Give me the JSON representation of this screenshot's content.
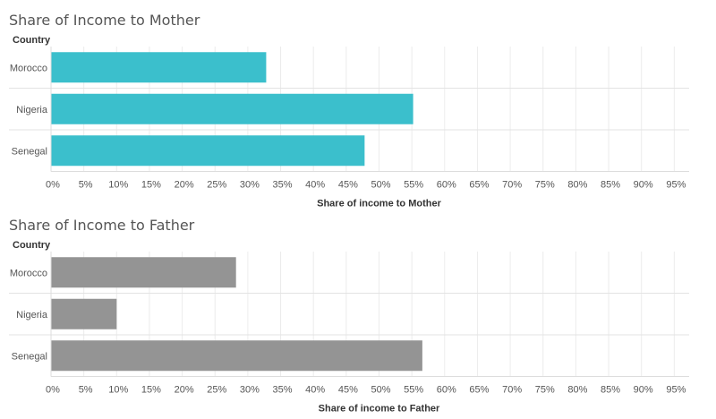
{
  "chart_data": [
    {
      "type": "bar",
      "orientation": "horizontal",
      "title": "Share of Income to Mother",
      "row_header": "Country",
      "categories": [
        "Morocco",
        "Nigeria",
        "Senegal"
      ],
      "values": [
        32.8,
        55.2,
        47.8
      ],
      "xlabel": "Share of income to Mother",
      "xlim": [
        0,
        100
      ],
      "ticks": [
        "0%",
        "5%",
        "10%",
        "15%",
        "20%",
        "25%",
        "30%",
        "35%",
        "40%",
        "45%",
        "50%",
        "55%",
        "60%",
        "65%",
        "70%",
        "75%",
        "80%",
        "85%",
        "90%",
        "95%"
      ],
      "bar_color": "#3bbfcc",
      "grid": true
    },
    {
      "type": "bar",
      "orientation": "horizontal",
      "title": "Share of Income to Father",
      "row_header": "Country",
      "categories": [
        "Morocco",
        "Nigeria",
        "Senegal"
      ],
      "values": [
        28.2,
        10.0,
        56.6
      ],
      "xlabel": "Share of income to Father",
      "xlim": [
        0,
        100
      ],
      "ticks": [
        "0%",
        "5%",
        "10%",
        "15%",
        "20%",
        "25%",
        "30%",
        "35%",
        "40%",
        "45%",
        "50%",
        "55%",
        "60%",
        "65%",
        "70%",
        "75%",
        "80%",
        "85%",
        "90%",
        "95%"
      ],
      "bar_color": "#949494",
      "grid": true
    }
  ]
}
